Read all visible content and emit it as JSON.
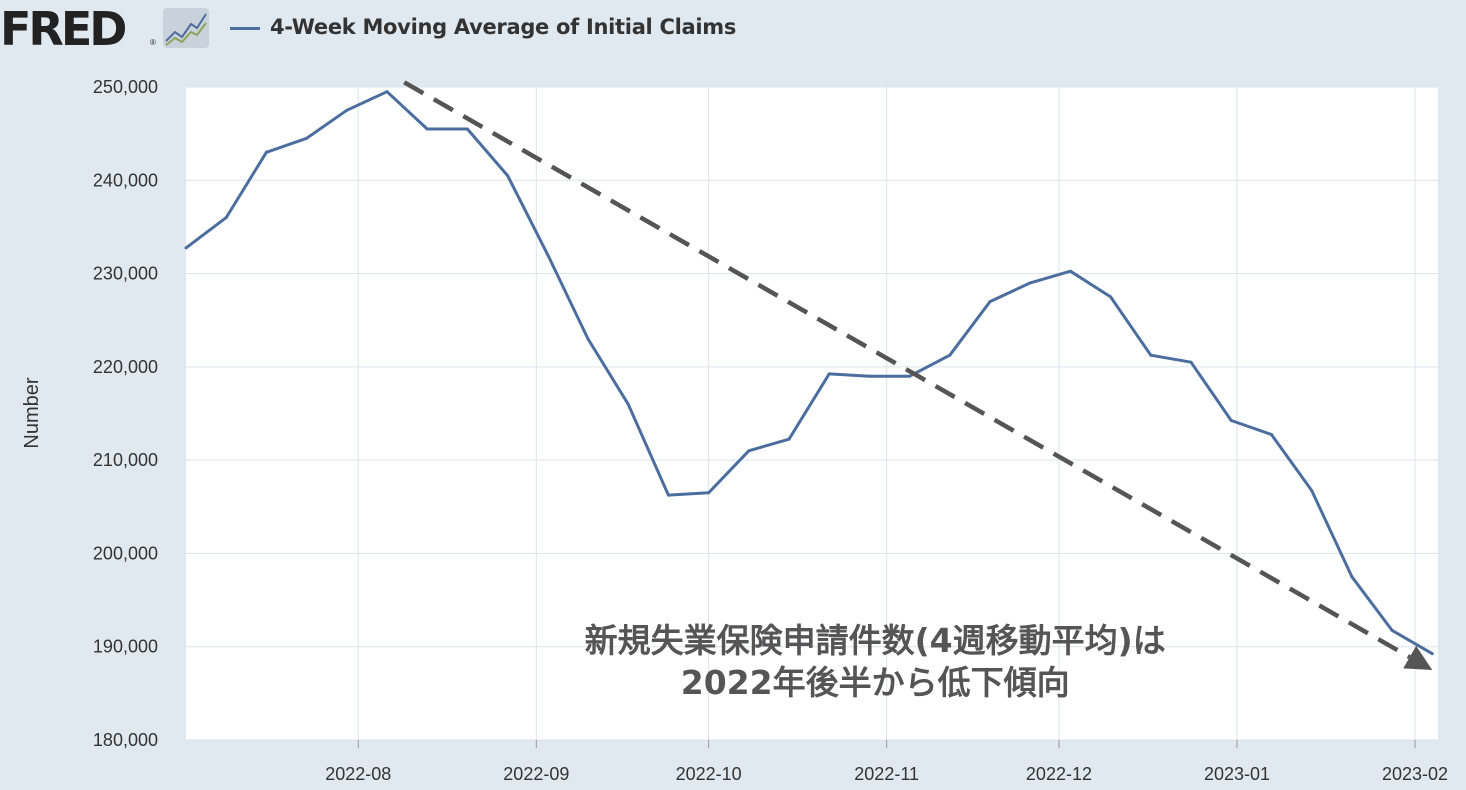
{
  "header": {
    "logo_text": "FRED",
    "logo_reg": "®",
    "legend_label": "4-Week Moving Average of Initial Claims"
  },
  "colors": {
    "series": "#4c6e9f",
    "trend": "#555555",
    "background": "#e1e9f0",
    "plot_bg": "#ffffff",
    "grid": "#dde3ea"
  },
  "chart_data": {
    "type": "line",
    "title": "",
    "xlabel": "",
    "ylabel": "Number",
    "ylim": [
      180000,
      250000
    ],
    "yticks": [
      180000,
      190000,
      200000,
      210000,
      220000,
      230000,
      240000,
      250000
    ],
    "ytick_labels": [
      "180,000",
      "190,000",
      "200,000",
      "210,000",
      "220,000",
      "230,000",
      "240,000",
      "250,000"
    ],
    "xlim": [
      "2022-07-02",
      "2023-02-05"
    ],
    "xticks": [
      "2022-08-01",
      "2022-09-01",
      "2022-10-01",
      "2022-11-01",
      "2022-12-01",
      "2023-01-01",
      "2023-02-01"
    ],
    "xtick_labels": [
      "2022-08",
      "2022-09",
      "2022-10",
      "2022-11",
      "2022-12",
      "2023-01",
      "2023-02"
    ],
    "grid": true,
    "legend": "top-left",
    "series": [
      {
        "name": "4-Week Moving Average of Initial Claims",
        "x": [
          "2022-07-02",
          "2022-07-09",
          "2022-07-16",
          "2022-07-23",
          "2022-07-30",
          "2022-08-06",
          "2022-08-13",
          "2022-08-20",
          "2022-08-27",
          "2022-09-03",
          "2022-09-10",
          "2022-09-17",
          "2022-09-24",
          "2022-10-01",
          "2022-10-08",
          "2022-10-15",
          "2022-10-22",
          "2022-10-29",
          "2022-11-05",
          "2022-11-12",
          "2022-11-19",
          "2022-11-26",
          "2022-12-03",
          "2022-12-10",
          "2022-12-17",
          "2022-12-24",
          "2022-12-31",
          "2023-01-07",
          "2023-01-14",
          "2023-01-21",
          "2023-01-28",
          "2023-02-04"
        ],
        "values": [
          232750,
          236000,
          243000,
          244500,
          247500,
          249500,
          245500,
          245500,
          240500,
          232000,
          223000,
          216000,
          206250,
          206500,
          211000,
          212250,
          219250,
          219000,
          219000,
          221250,
          227000,
          229000,
          230250,
          227500,
          221250,
          220500,
          214250,
          212750,
          206750,
          197500,
          191750,
          189250
        ]
      }
    ],
    "annotations": [
      {
        "type": "arrow",
        "style": "dashed",
        "x1": "2022-08-09",
        "y1": 250500,
        "x2": "2023-02-04",
        "y2": 187500
      },
      {
        "type": "text",
        "lines": [
          "新規失業保険申請件数(4週移動平均)は",
          "2022年後半から低下傾向"
        ],
        "x": "2022-10-30",
        "y": 188000
      }
    ]
  }
}
